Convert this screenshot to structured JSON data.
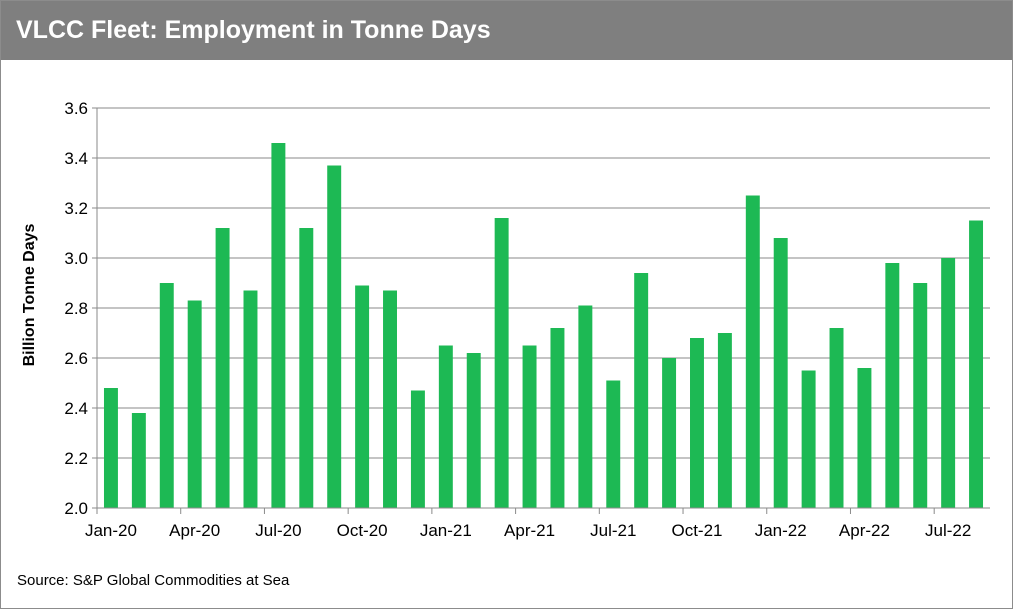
{
  "header": {
    "title": "VLCC Fleet: Employment in Tonne Days"
  },
  "footer": {
    "source": "Source: S&P Global Commodities at Sea"
  },
  "chart_data": {
    "type": "bar",
    "title": "VLCC Fleet: Employment in Tonne Days",
    "xlabel": "",
    "ylabel": "Billion Tonne Days",
    "ylim": [
      2.0,
      3.6
    ],
    "yticks": [
      2.0,
      2.2,
      2.4,
      2.6,
      2.8,
      3.0,
      3.2,
      3.4,
      3.6
    ],
    "grid": true,
    "legend": "none",
    "bar_color": "#1db954",
    "categories": [
      "Jan-20",
      "Feb-20",
      "Mar-20",
      "Apr-20",
      "May-20",
      "Jun-20",
      "Jul-20",
      "Aug-20",
      "Sep-20",
      "Oct-20",
      "Nov-20",
      "Dec-20",
      "Jan-21",
      "Feb-21",
      "Mar-21",
      "Apr-21",
      "May-21",
      "Jun-21",
      "Jul-21",
      "Aug-21",
      "Sep-21",
      "Oct-21",
      "Nov-21",
      "Dec-21",
      "Jan-22",
      "Feb-22",
      "Mar-22",
      "Apr-22",
      "May-22",
      "Jun-22",
      "Jul-22",
      "Aug-22"
    ],
    "x_tick_labels": [
      {
        "index": 0,
        "label": "Jan-20"
      },
      {
        "index": 3,
        "label": "Apr-20"
      },
      {
        "index": 6,
        "label": "Jul-20"
      },
      {
        "index": 9,
        "label": "Oct-20"
      },
      {
        "index": 12,
        "label": "Jan-21"
      },
      {
        "index": 15,
        "label": "Apr-21"
      },
      {
        "index": 18,
        "label": "Jul-21"
      },
      {
        "index": 21,
        "label": "Oct-21"
      },
      {
        "index": 24,
        "label": "Jan-22"
      },
      {
        "index": 27,
        "label": "Apr-22"
      },
      {
        "index": 30,
        "label": "Jul-22"
      }
    ],
    "values": [
      2.48,
      2.38,
      2.9,
      2.83,
      3.12,
      2.87,
      3.46,
      3.12,
      3.37,
      2.89,
      2.87,
      2.47,
      2.65,
      2.62,
      3.16,
      2.65,
      2.72,
      2.81,
      2.51,
      2.94,
      2.6,
      2.68,
      2.7,
      3.25,
      3.08,
      2.55,
      2.72,
      2.56,
      2.98,
      2.9,
      3.0,
      3.15
    ]
  }
}
